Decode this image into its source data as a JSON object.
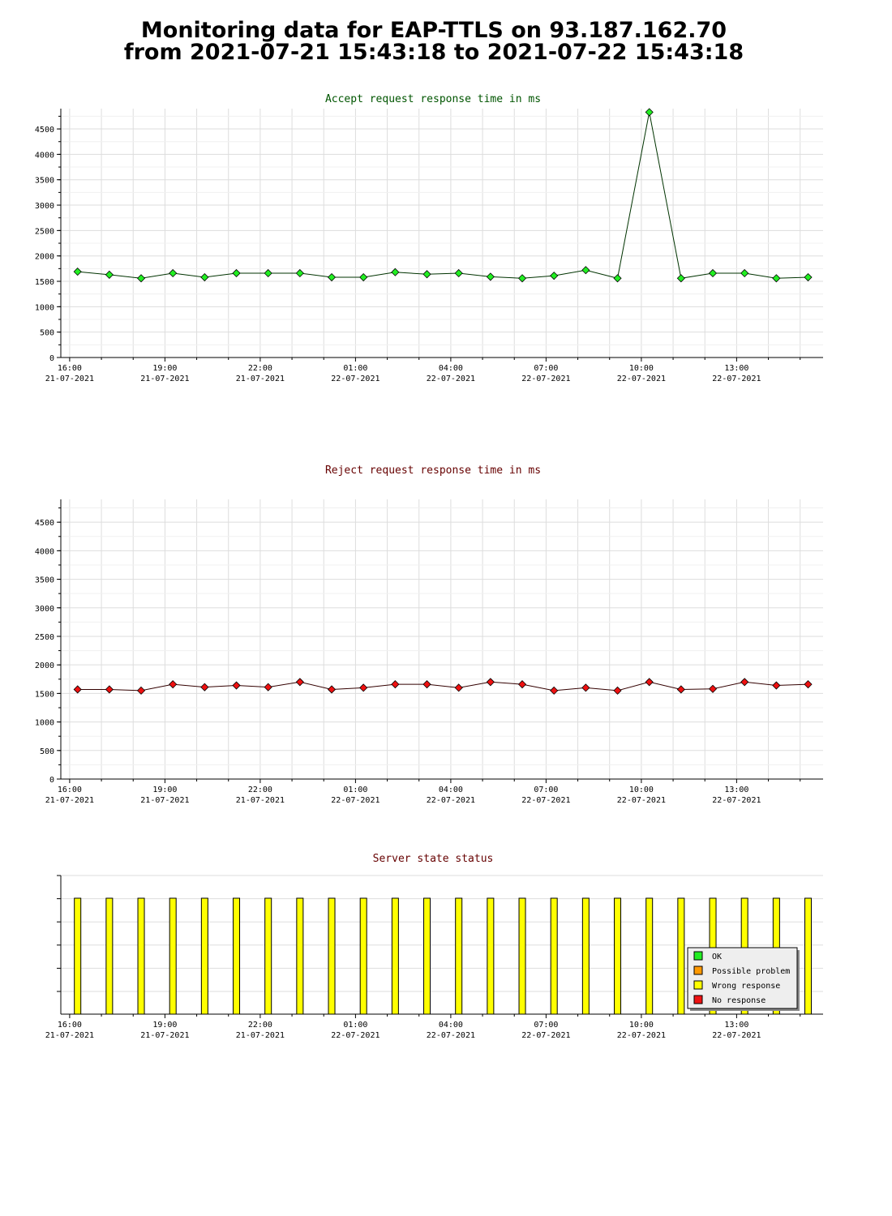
{
  "header": {
    "title_line1": "Monitoring data for EAP-TTLS on 93.187.162.70",
    "title_line2": "from 2021-07-21 15:43:18 to 2021-07-22 15:43:18"
  },
  "colors": {
    "accept_line": "#003300",
    "accept_marker": "#22ee22",
    "reject_line": "#330000",
    "reject_marker": "#ee1111",
    "accept_title": "#005500",
    "reject_title": "#660000",
    "status_title": "#660000",
    "status_bar": "#ffff00",
    "grid": "#dddddd",
    "legend_bg": "#eeeeee"
  },
  "chart_data": [
    {
      "id": "accept",
      "type": "line",
      "title": "Accept request response time in ms",
      "ylim": [
        0,
        4900
      ],
      "y_ticks": [
        0,
        500,
        1000,
        1500,
        2000,
        2500,
        3000,
        3500,
        4000,
        4500
      ],
      "x_tick_labels": [
        [
          "16:00",
          "21-07-2021"
        ],
        [
          "19:00",
          "21-07-2021"
        ],
        [
          "22:00",
          "21-07-2021"
        ],
        [
          "01:00",
          "22-07-2021"
        ],
        [
          "04:00",
          "22-07-2021"
        ],
        [
          "07:00",
          "22-07-2021"
        ],
        [
          "10:00",
          "22-07-2021"
        ],
        [
          "13:00",
          "22-07-2021"
        ]
      ],
      "x": [
        "2021-07-21 16:15",
        "2021-07-21 17:15",
        "2021-07-21 18:15",
        "2021-07-21 19:15",
        "2021-07-21 20:15",
        "2021-07-21 21:15",
        "2021-07-21 22:15",
        "2021-07-21 23:15",
        "2021-07-22 00:15",
        "2021-07-22 01:15",
        "2021-07-22 02:15",
        "2021-07-22 03:15",
        "2021-07-22 04:15",
        "2021-07-22 05:15",
        "2021-07-22 06:15",
        "2021-07-22 07:15",
        "2021-07-22 08:15",
        "2021-07-22 09:15",
        "2021-07-22 10:15",
        "2021-07-22 11:15",
        "2021-07-22 12:15",
        "2021-07-22 13:15",
        "2021-07-22 14:15",
        "2021-07-22 15:15"
      ],
      "values": [
        1690,
        1630,
        1560,
        1660,
        1580,
        1660,
        1660,
        1660,
        1580,
        1580,
        1680,
        1640,
        1660,
        1590,
        1560,
        1610,
        1720,
        1560,
        4830,
        1560,
        1660,
        1660,
        1560,
        1580
      ]
    },
    {
      "id": "reject",
      "type": "line",
      "title": "Reject request response time in ms",
      "ylim": [
        0,
        4900
      ],
      "y_ticks": [
        0,
        500,
        1000,
        1500,
        2000,
        2500,
        3000,
        3500,
        4000,
        4500
      ],
      "x_tick_labels": [
        [
          "16:00",
          "21-07-2021"
        ],
        [
          "19:00",
          "21-07-2021"
        ],
        [
          "22:00",
          "21-07-2021"
        ],
        [
          "01:00",
          "22-07-2021"
        ],
        [
          "04:00",
          "22-07-2021"
        ],
        [
          "07:00",
          "22-07-2021"
        ],
        [
          "10:00",
          "22-07-2021"
        ],
        [
          "13:00",
          "22-07-2021"
        ]
      ],
      "x": [
        "2021-07-21 16:15",
        "2021-07-21 17:15",
        "2021-07-21 18:15",
        "2021-07-21 19:15",
        "2021-07-21 20:15",
        "2021-07-21 21:15",
        "2021-07-21 22:15",
        "2021-07-21 23:15",
        "2021-07-22 00:15",
        "2021-07-22 01:15",
        "2021-07-22 02:15",
        "2021-07-22 03:15",
        "2021-07-22 04:15",
        "2021-07-22 05:15",
        "2021-07-22 06:15",
        "2021-07-22 07:15",
        "2021-07-22 08:15",
        "2021-07-22 09:15",
        "2021-07-22 10:15",
        "2021-07-22 11:15",
        "2021-07-22 12:15",
        "2021-07-22 13:15",
        "2021-07-22 14:15",
        "2021-07-22 15:15"
      ],
      "values": [
        1570,
        1570,
        1550,
        1660,
        1610,
        1640,
        1610,
        1700,
        1570,
        1600,
        1660,
        1660,
        1600,
        1700,
        1660,
        1550,
        1600,
        1550,
        1700,
        1570,
        1580,
        1700,
        1640,
        1660
      ]
    },
    {
      "id": "status",
      "type": "bar",
      "title": "Server state status",
      "x_tick_labels": [
        [
          "16:00",
          "21-07-2021"
        ],
        [
          "19:00",
          "21-07-2021"
        ],
        [
          "22:00",
          "21-07-2021"
        ],
        [
          "01:00",
          "22-07-2021"
        ],
        [
          "04:00",
          "22-07-2021"
        ],
        [
          "07:00",
          "22-07-2021"
        ],
        [
          "10:00",
          "22-07-2021"
        ],
        [
          "13:00",
          "22-07-2021"
        ]
      ],
      "x": [
        "2021-07-21 16:15",
        "2021-07-21 17:15",
        "2021-07-21 18:15",
        "2021-07-21 19:15",
        "2021-07-21 20:15",
        "2021-07-21 21:15",
        "2021-07-21 22:15",
        "2021-07-21 23:15",
        "2021-07-22 00:15",
        "2021-07-22 01:15",
        "2021-07-22 02:15",
        "2021-07-22 03:15",
        "2021-07-22 04:15",
        "2021-07-22 05:15",
        "2021-07-22 06:15",
        "2021-07-22 07:15",
        "2021-07-22 08:15",
        "2021-07-22 09:15",
        "2021-07-22 10:15",
        "2021-07-22 11:15",
        "2021-07-22 12:15",
        "2021-07-22 13:15",
        "2021-07-22 14:15",
        "2021-07-22 15:15"
      ],
      "states": [
        "Wrong response",
        "Wrong response",
        "Wrong response",
        "Wrong response",
        "Wrong response",
        "Wrong response",
        "Wrong response",
        "Wrong response",
        "Wrong response",
        "Wrong response",
        "Wrong response",
        "Wrong response",
        "Wrong response",
        "Wrong response",
        "Wrong response",
        "Wrong response",
        "Wrong response",
        "Wrong response",
        "Wrong response",
        "Wrong response",
        "Wrong response",
        "Wrong response",
        "Wrong response",
        "Wrong response"
      ],
      "legend": [
        {
          "label": "OK",
          "color": "#22ee22"
        },
        {
          "label": "Possible problem",
          "color": "#ff9900"
        },
        {
          "label": "Wrong response",
          "color": "#ffff00"
        },
        {
          "label": "No response",
          "color": "#ee1111"
        }
      ],
      "legend_position": "bottom-right"
    }
  ]
}
